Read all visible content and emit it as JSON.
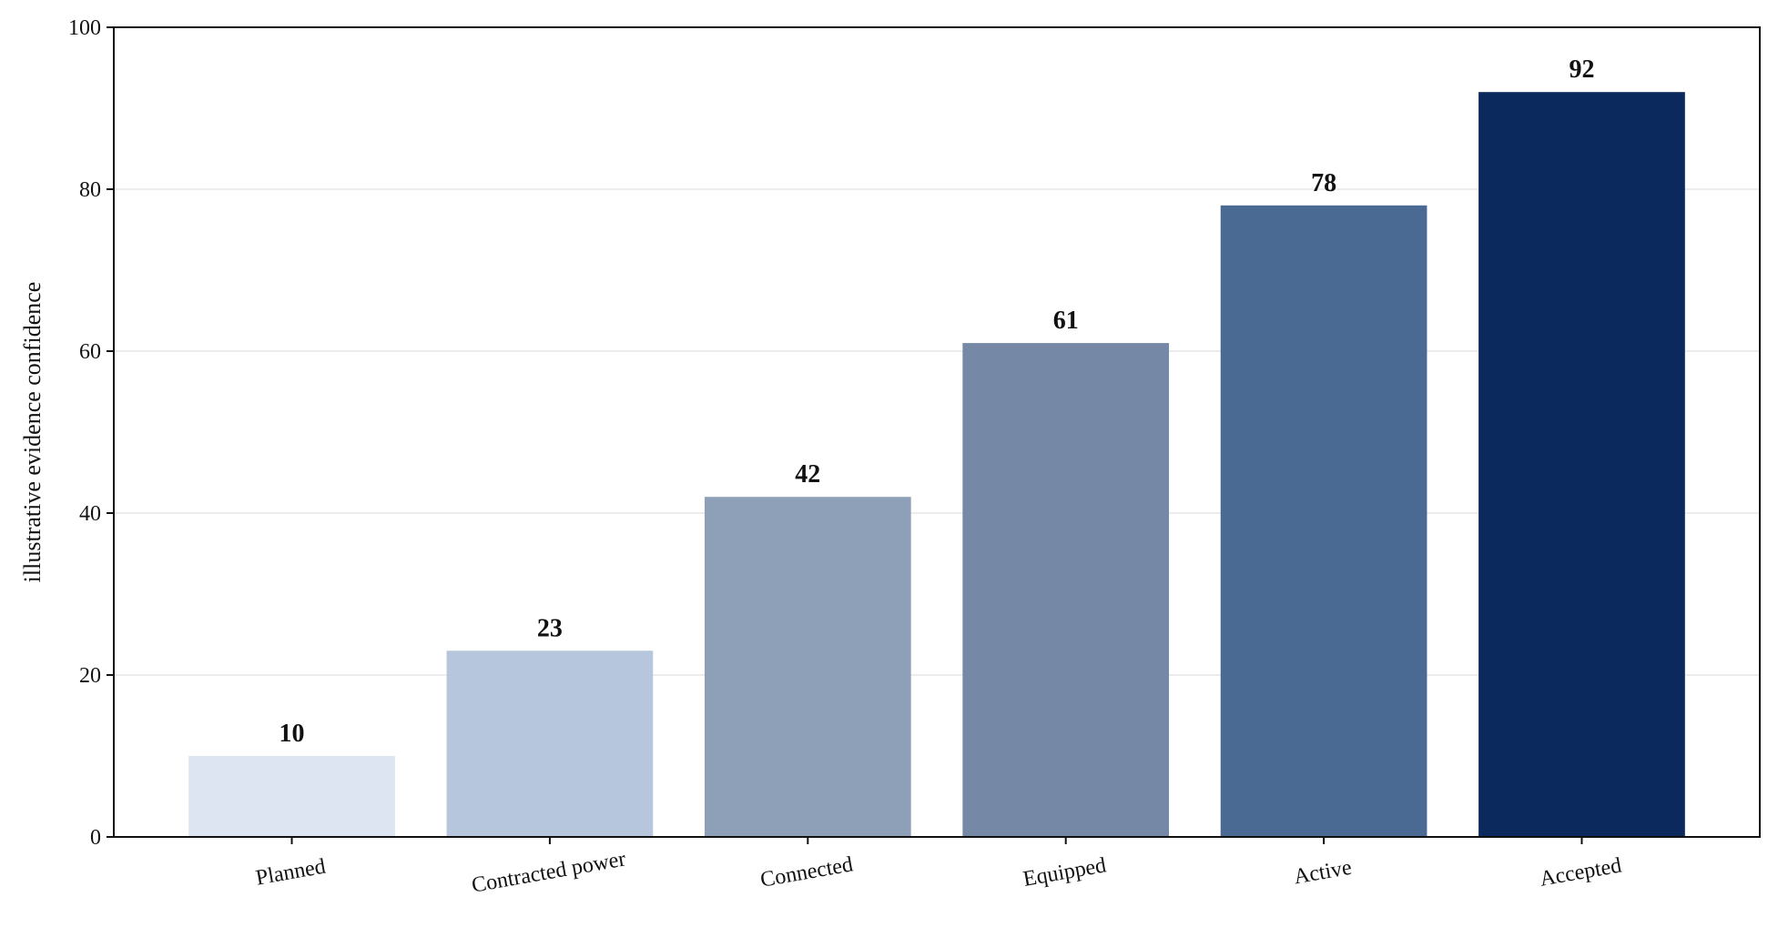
{
  "chart_data": {
    "type": "bar",
    "categories": [
      "Planned",
      "Contracted power",
      "Connected",
      "Equipped",
      "Active",
      "Accepted"
    ],
    "values": [
      10,
      23,
      42,
      61,
      78,
      92
    ],
    "data_labels": [
      "10",
      "23",
      "42",
      "61",
      "78",
      "92"
    ],
    "colors": [
      "#dce5f1",
      "#b6c7dd",
      "#8ea0b7",
      "#7589a7",
      "#4a6a93",
      "#0b295c"
    ],
    "title": "",
    "xlabel": "",
    "ylabel": "illustrative evidence confidence",
    "ylim": [
      0,
      100
    ],
    "yticks": [
      "0",
      "20",
      "40",
      "60",
      "80",
      "100"
    ],
    "grid": "y",
    "legend": "none"
  }
}
